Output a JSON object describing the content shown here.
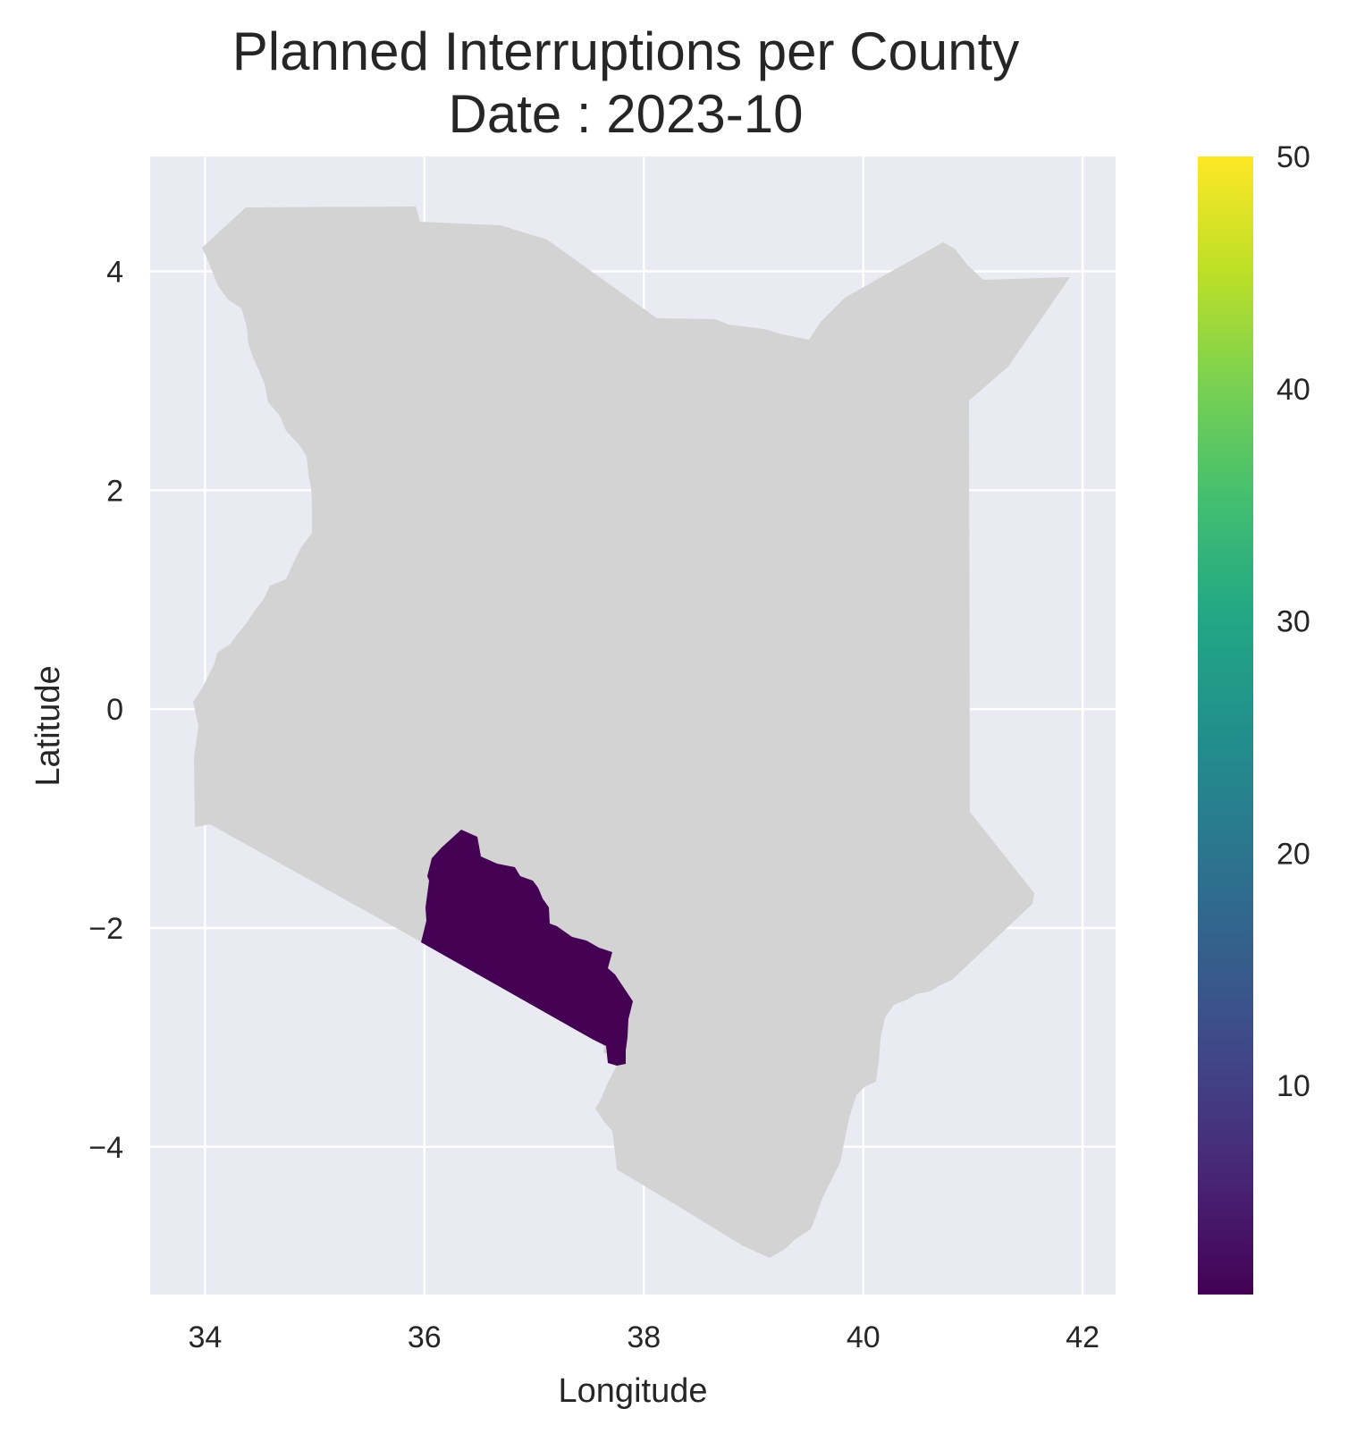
{
  "chart_data": {
    "type": "choropleth",
    "title": "Planned Interruptions per County",
    "subtitle": "Date : 2023-10",
    "xlabel": "Longitude",
    "ylabel": "Latitude",
    "xlim": [
      33.5,
      42.3
    ],
    "ylim": [
      -5.35,
      5.05
    ],
    "xticks": [
      {
        "value": 34,
        "label": "34"
      },
      {
        "value": 36,
        "label": "36"
      },
      {
        "value": 38,
        "label": "38"
      },
      {
        "value": 40,
        "label": "40"
      },
      {
        "value": 42,
        "label": "42"
      }
    ],
    "yticks": [
      {
        "value": 4,
        "label": "4"
      },
      {
        "value": 2,
        "label": "2"
      },
      {
        "value": 0,
        "label": "0"
      },
      {
        "value": -2,
        "label": "−2"
      },
      {
        "value": -4,
        "label": "−4"
      }
    ],
    "grid": true,
    "background_color": "#eaeaf2",
    "no_data_color": "#d3d3d3",
    "highlighted_region": {
      "value": 1,
      "color": "#440154"
    },
    "colorbar": {
      "colormap": "viridis",
      "range": [
        1,
        50
      ],
      "ticks": [
        {
          "value": 10,
          "label": "10"
        },
        {
          "value": 20,
          "label": "20"
        },
        {
          "value": 30,
          "label": "30"
        },
        {
          "value": 40,
          "label": "40"
        },
        {
          "value": 50,
          "label": "50"
        }
      ]
    }
  }
}
